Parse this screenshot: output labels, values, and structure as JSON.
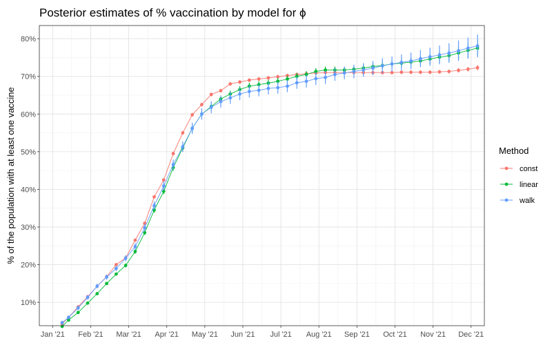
{
  "chart_data": {
    "type": "line",
    "title": "Posterior estimates of % vaccination by model for ϕ",
    "ylabel": "% of the population with at least one vaccine",
    "xlabel": "",
    "x_tick_labels": [
      "Jan '21",
      "Feb '21",
      "Mar '21",
      "Apr '21",
      "May '21",
      "Jun '21",
      "Jul '21",
      "Aug '21",
      "Sep '21",
      "Oct '21",
      "Nov '21",
      "Dec '21"
    ],
    "x_ticks_month_index": [
      0,
      1,
      2,
      3,
      4,
      5,
      6,
      7,
      8,
      9,
      10,
      11
    ],
    "x_range_month_index": [
      -0.35,
      11.35
    ],
    "y_tick_labels": [
      "10%",
      "20%",
      "30%",
      "40%",
      "50%",
      "60%",
      "70%",
      "80%"
    ],
    "y_ticks": [
      10,
      20,
      30,
      40,
      50,
      60,
      70,
      80
    ],
    "ylim": [
      3.8,
      83.5
    ],
    "grid": true,
    "legend": {
      "title": "Method",
      "placement": "right"
    },
    "x_month_index": [
      0.25,
      0.42,
      0.67,
      0.92,
      1.17,
      1.42,
      1.67,
      1.92,
      2.17,
      2.42,
      2.67,
      2.92,
      3.17,
      3.42,
      3.67,
      3.92,
      4.17,
      4.42,
      4.67,
      4.92,
      5.17,
      5.42,
      5.67,
      5.92,
      6.17,
      6.42,
      6.67,
      6.92,
      7.17,
      7.42,
      7.67,
      7.92,
      8.17,
      8.42,
      8.67,
      8.92,
      9.17,
      9.42,
      9.67,
      9.92,
      10.17,
      10.42,
      10.67,
      10.92,
      11.17
    ],
    "series": [
      {
        "name": "const",
        "color": "#F8766D",
        "values": [
          4.3,
          6.0,
          8.8,
          11.5,
          14.3,
          16.8,
          20.0,
          21.8,
          26.5,
          31.0,
          38.0,
          42.5,
          49.5,
          55.0,
          59.8,
          62.5,
          65.2,
          66.2,
          68.0,
          68.5,
          69.0,
          69.3,
          69.6,
          69.9,
          70.2,
          70.5,
          70.7,
          70.9,
          71.0,
          71.0,
          71.0,
          71.0,
          71.0,
          71.0,
          71.0,
          71.0,
          71.1,
          71.1,
          71.1,
          71.1,
          71.2,
          71.3,
          71.6,
          71.9,
          72.3
        ],
        "error": [
          0.2,
          0.2,
          0.2,
          0.3,
          0.3,
          0.3,
          0.3,
          0.3,
          0.4,
          0.4,
          0.4,
          0.4,
          0.5,
          0.5,
          0.5,
          0.5,
          0.5,
          0.5,
          0.5,
          0.5,
          0.5,
          0.5,
          0.5,
          0.5,
          0.5,
          0.5,
          0.5,
          0.5,
          0.5,
          0.5,
          0.5,
          0.5,
          0.5,
          0.5,
          0.5,
          0.5,
          0.5,
          0.5,
          0.5,
          0.5,
          0.5,
          0.5,
          0.6,
          0.6,
          0.7
        ]
      },
      {
        "name": "linear",
        "color": "#00BA38",
        "values": [
          3.6,
          5.3,
          7.3,
          9.8,
          12.3,
          15.0,
          17.5,
          19.8,
          23.5,
          28.5,
          34.5,
          39.5,
          45.8,
          51.0,
          56.2,
          60.0,
          62.0,
          64.0,
          65.3,
          66.5,
          67.4,
          67.8,
          68.2,
          68.7,
          69.3,
          70.0,
          70.5,
          71.3,
          71.7,
          71.7,
          71.7,
          71.9,
          72.2,
          72.6,
          72.9,
          73.3,
          73.5,
          73.8,
          74.1,
          74.6,
          75.1,
          75.5,
          76.2,
          76.9,
          77.5
        ],
        "error": [
          0.3,
          0.3,
          0.3,
          0.3,
          0.4,
          0.4,
          0.4,
          0.5,
          0.6,
          0.6,
          0.7,
          0.8,
          0.9,
          0.9,
          0.9,
          0.9,
          0.9,
          0.9,
          0.9,
          0.9,
          0.9,
          0.9,
          0.9,
          0.9,
          0.9,
          0.9,
          0.9,
          0.9,
          0.9,
          0.9,
          0.9,
          0.9,
          1.0,
          1.0,
          1.0,
          1.0,
          1.1,
          1.2,
          1.3,
          1.4,
          1.5,
          1.6,
          1.8,
          2.0,
          2.3
        ]
      },
      {
        "name": "walk",
        "color": "#619CFF",
        "values": [
          4.6,
          6.0,
          8.5,
          11.3,
          14.3,
          16.7,
          19.0,
          21.7,
          24.8,
          29.8,
          35.7,
          40.9,
          46.6,
          51.3,
          56.2,
          60.0,
          61.8,
          63.3,
          64.3,
          65.3,
          66.0,
          66.3,
          66.8,
          67.0,
          67.4,
          68.3,
          68.7,
          69.4,
          69.7,
          70.5,
          70.9,
          71.3,
          71.7,
          72.2,
          72.8,
          73.3,
          73.7,
          74.1,
          74.7,
          75.2,
          75.7,
          76.2,
          76.8,
          77.5,
          78.1
        ],
        "error": [
          0.5,
          0.5,
          0.6,
          0.6,
          0.6,
          0.7,
          0.7,
          0.8,
          0.9,
          1.0,
          1.1,
          1.2,
          1.3,
          1.4,
          1.5,
          1.5,
          1.6,
          1.6,
          1.6,
          1.6,
          1.6,
          1.6,
          1.6,
          1.6,
          1.6,
          1.6,
          1.7,
          1.7,
          1.7,
          1.7,
          1.7,
          1.8,
          1.8,
          1.9,
          2.0,
          2.0,
          2.1,
          2.2,
          2.3,
          2.4,
          2.5,
          2.6,
          2.7,
          2.8,
          3.0
        ]
      }
    ]
  }
}
